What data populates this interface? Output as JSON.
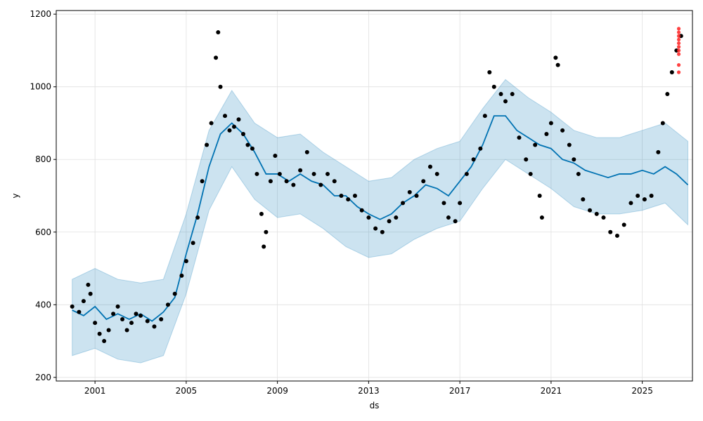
{
  "chart_data": {
    "type": "scatter",
    "xlabel": "ds",
    "ylabel": "y",
    "xlim": [
      1999.3,
      2027.2
    ],
    "ylim": [
      190,
      1210
    ],
    "x_ticks": [
      2001,
      2005,
      2009,
      2013,
      2017,
      2021,
      2025
    ],
    "y_ticks": [
      200,
      400,
      600,
      800,
      1000,
      1200
    ],
    "grid": true,
    "colors": {
      "observed": "#000000",
      "forecast": "#0072B2",
      "band": "#0072B2",
      "highlight": "#ff2020"
    },
    "series": [
      {
        "kind": "observed_points",
        "points": [
          [
            2000.0,
            395
          ],
          [
            2000.3,
            380
          ],
          [
            2000.5,
            410
          ],
          [
            2000.7,
            455
          ],
          [
            2000.8,
            430
          ],
          [
            2001.0,
            350
          ],
          [
            2001.2,
            320
          ],
          [
            2001.4,
            300
          ],
          [
            2001.6,
            330
          ],
          [
            2001.8,
            375
          ],
          [
            2002.0,
            395
          ],
          [
            2002.2,
            360
          ],
          [
            2002.4,
            330
          ],
          [
            2002.6,
            350
          ],
          [
            2002.8,
            375
          ],
          [
            2003.0,
            370
          ],
          [
            2003.3,
            355
          ],
          [
            2003.6,
            340
          ],
          [
            2003.9,
            360
          ],
          [
            2004.2,
            400
          ],
          [
            2004.5,
            430
          ],
          [
            2004.8,
            480
          ],
          [
            2005.0,
            520
          ],
          [
            2005.3,
            570
          ],
          [
            2005.5,
            640
          ],
          [
            2005.7,
            740
          ],
          [
            2005.9,
            840
          ],
          [
            2006.1,
            900
          ],
          [
            2006.3,
            1080
          ],
          [
            2006.4,
            1150
          ],
          [
            2006.5,
            1000
          ],
          [
            2006.7,
            920
          ],
          [
            2006.9,
            880
          ],
          [
            2007.1,
            890
          ],
          [
            2007.3,
            910
          ],
          [
            2007.5,
            870
          ],
          [
            2007.7,
            840
          ],
          [
            2007.9,
            830
          ],
          [
            2008.1,
            760
          ],
          [
            2008.3,
            650
          ],
          [
            2008.4,
            560
          ],
          [
            2008.5,
            600
          ],
          [
            2008.7,
            740
          ],
          [
            2008.9,
            810
          ],
          [
            2009.1,
            760
          ],
          [
            2009.4,
            740
          ],
          [
            2009.7,
            730
          ],
          [
            2010.0,
            770
          ],
          [
            2010.3,
            820
          ],
          [
            2010.6,
            760
          ],
          [
            2010.9,
            730
          ],
          [
            2011.2,
            760
          ],
          [
            2011.5,
            740
          ],
          [
            2011.8,
            700
          ],
          [
            2012.1,
            690
          ],
          [
            2012.4,
            700
          ],
          [
            2012.7,
            660
          ],
          [
            2013.0,
            640
          ],
          [
            2013.3,
            610
          ],
          [
            2013.6,
            600
          ],
          [
            2013.9,
            630
          ],
          [
            2014.2,
            640
          ],
          [
            2014.5,
            680
          ],
          [
            2014.8,
            710
          ],
          [
            2015.1,
            700
          ],
          [
            2015.4,
            740
          ],
          [
            2015.7,
            780
          ],
          [
            2016.0,
            760
          ],
          [
            2016.3,
            680
          ],
          [
            2016.5,
            640
          ],
          [
            2016.8,
            630
          ],
          [
            2017.0,
            680
          ],
          [
            2017.3,
            760
          ],
          [
            2017.6,
            800
          ],
          [
            2017.9,
            830
          ],
          [
            2018.1,
            920
          ],
          [
            2018.3,
            1040
          ],
          [
            2018.5,
            1000
          ],
          [
            2018.8,
            980
          ],
          [
            2019.0,
            960
          ],
          [
            2019.3,
            980
          ],
          [
            2019.6,
            860
          ],
          [
            2019.9,
            800
          ],
          [
            2020.1,
            760
          ],
          [
            2020.3,
            840
          ],
          [
            2020.5,
            700
          ],
          [
            2020.6,
            640
          ],
          [
            2020.8,
            870
          ],
          [
            2021.0,
            900
          ],
          [
            2021.2,
            1080
          ],
          [
            2021.3,
            1060
          ],
          [
            2021.5,
            880
          ],
          [
            2021.8,
            840
          ],
          [
            2022.0,
            800
          ],
          [
            2022.2,
            760
          ],
          [
            2022.4,
            690
          ],
          [
            2022.7,
            660
          ],
          [
            2023.0,
            650
          ],
          [
            2023.3,
            640
          ],
          [
            2023.6,
            600
          ],
          [
            2023.9,
            590
          ],
          [
            2024.2,
            620
          ],
          [
            2024.5,
            680
          ],
          [
            2024.8,
            700
          ],
          [
            2025.1,
            690
          ],
          [
            2025.4,
            700
          ],
          [
            2025.7,
            820
          ],
          [
            2025.9,
            900
          ],
          [
            2026.1,
            980
          ],
          [
            2026.3,
            1040
          ],
          [
            2026.5,
            1100
          ],
          [
            2026.7,
            1140
          ]
        ]
      },
      {
        "kind": "forecast_line",
        "points": [
          [
            2000.0,
            385
          ],
          [
            2000.5,
            370
          ],
          [
            2001.0,
            395
          ],
          [
            2001.5,
            360
          ],
          [
            2002.0,
            375
          ],
          [
            2002.5,
            360
          ],
          [
            2003.0,
            375
          ],
          [
            2003.5,
            355
          ],
          [
            2004.0,
            380
          ],
          [
            2004.5,
            420
          ],
          [
            2005.0,
            540
          ],
          [
            2005.5,
            650
          ],
          [
            2006.0,
            780
          ],
          [
            2006.5,
            870
          ],
          [
            2007.0,
            900
          ],
          [
            2007.5,
            870
          ],
          [
            2008.0,
            820
          ],
          [
            2008.5,
            760
          ],
          [
            2009.0,
            760
          ],
          [
            2009.5,
            740
          ],
          [
            2010.0,
            760
          ],
          [
            2010.5,
            740
          ],
          [
            2011.0,
            730
          ],
          [
            2011.5,
            700
          ],
          [
            2012.0,
            700
          ],
          [
            2012.5,
            670
          ],
          [
            2013.0,
            650
          ],
          [
            2013.5,
            635
          ],
          [
            2014.0,
            650
          ],
          [
            2014.5,
            680
          ],
          [
            2015.0,
            700
          ],
          [
            2015.5,
            730
          ],
          [
            2016.0,
            720
          ],
          [
            2016.5,
            700
          ],
          [
            2017.0,
            740
          ],
          [
            2017.5,
            780
          ],
          [
            2018.0,
            840
          ],
          [
            2018.5,
            920
          ],
          [
            2019.0,
            920
          ],
          [
            2019.5,
            880
          ],
          [
            2020.0,
            860
          ],
          [
            2020.5,
            840
          ],
          [
            2021.0,
            830
          ],
          [
            2021.5,
            800
          ],
          [
            2022.0,
            790
          ],
          [
            2022.5,
            770
          ],
          [
            2023.0,
            760
          ],
          [
            2023.5,
            750
          ],
          [
            2024.0,
            760
          ],
          [
            2024.5,
            760
          ],
          [
            2025.0,
            770
          ],
          [
            2025.5,
            760
          ],
          [
            2026.0,
            780
          ],
          [
            2026.5,
            760
          ],
          [
            2027.0,
            730
          ]
        ]
      },
      {
        "kind": "uncertainty_band",
        "upper": [
          [
            2000.0,
            470
          ],
          [
            2001.0,
            500
          ],
          [
            2002.0,
            470
          ],
          [
            2003.0,
            460
          ],
          [
            2004.0,
            470
          ],
          [
            2005.0,
            650
          ],
          [
            2006.0,
            880
          ],
          [
            2007.0,
            990
          ],
          [
            2008.0,
            900
          ],
          [
            2009.0,
            860
          ],
          [
            2010.0,
            870
          ],
          [
            2011.0,
            820
          ],
          [
            2012.0,
            780
          ],
          [
            2013.0,
            740
          ],
          [
            2014.0,
            750
          ],
          [
            2015.0,
            800
          ],
          [
            2016.0,
            830
          ],
          [
            2017.0,
            850
          ],
          [
            2018.0,
            940
          ],
          [
            2019.0,
            1020
          ],
          [
            2020.0,
            970
          ],
          [
            2021.0,
            930
          ],
          [
            2022.0,
            880
          ],
          [
            2023.0,
            860
          ],
          [
            2024.0,
            860
          ],
          [
            2025.0,
            880
          ],
          [
            2026.0,
            900
          ],
          [
            2027.0,
            850
          ]
        ],
        "lower": [
          [
            2000.0,
            260
          ],
          [
            2001.0,
            280
          ],
          [
            2002.0,
            250
          ],
          [
            2003.0,
            240
          ],
          [
            2004.0,
            260
          ],
          [
            2005.0,
            430
          ],
          [
            2006.0,
            660
          ],
          [
            2007.0,
            780
          ],
          [
            2008.0,
            690
          ],
          [
            2009.0,
            640
          ],
          [
            2010.0,
            650
          ],
          [
            2011.0,
            610
          ],
          [
            2012.0,
            560
          ],
          [
            2013.0,
            530
          ],
          [
            2014.0,
            540
          ],
          [
            2015.0,
            580
          ],
          [
            2016.0,
            610
          ],
          [
            2017.0,
            630
          ],
          [
            2018.0,
            720
          ],
          [
            2019.0,
            800
          ],
          [
            2020.0,
            760
          ],
          [
            2021.0,
            720
          ],
          [
            2022.0,
            670
          ],
          [
            2023.0,
            650
          ],
          [
            2024.0,
            650
          ],
          [
            2025.0,
            660
          ],
          [
            2026.0,
            680
          ],
          [
            2027.0,
            620
          ]
        ]
      },
      {
        "kind": "highlight_points",
        "points": [
          [
            2026.6,
            1160
          ],
          [
            2026.6,
            1150
          ],
          [
            2026.6,
            1140
          ],
          [
            2026.6,
            1130
          ],
          [
            2026.6,
            1120
          ],
          [
            2026.6,
            1110
          ],
          [
            2026.6,
            1100
          ],
          [
            2026.6,
            1090
          ],
          [
            2026.6,
            1060
          ],
          [
            2026.6,
            1040
          ]
        ]
      }
    ]
  }
}
